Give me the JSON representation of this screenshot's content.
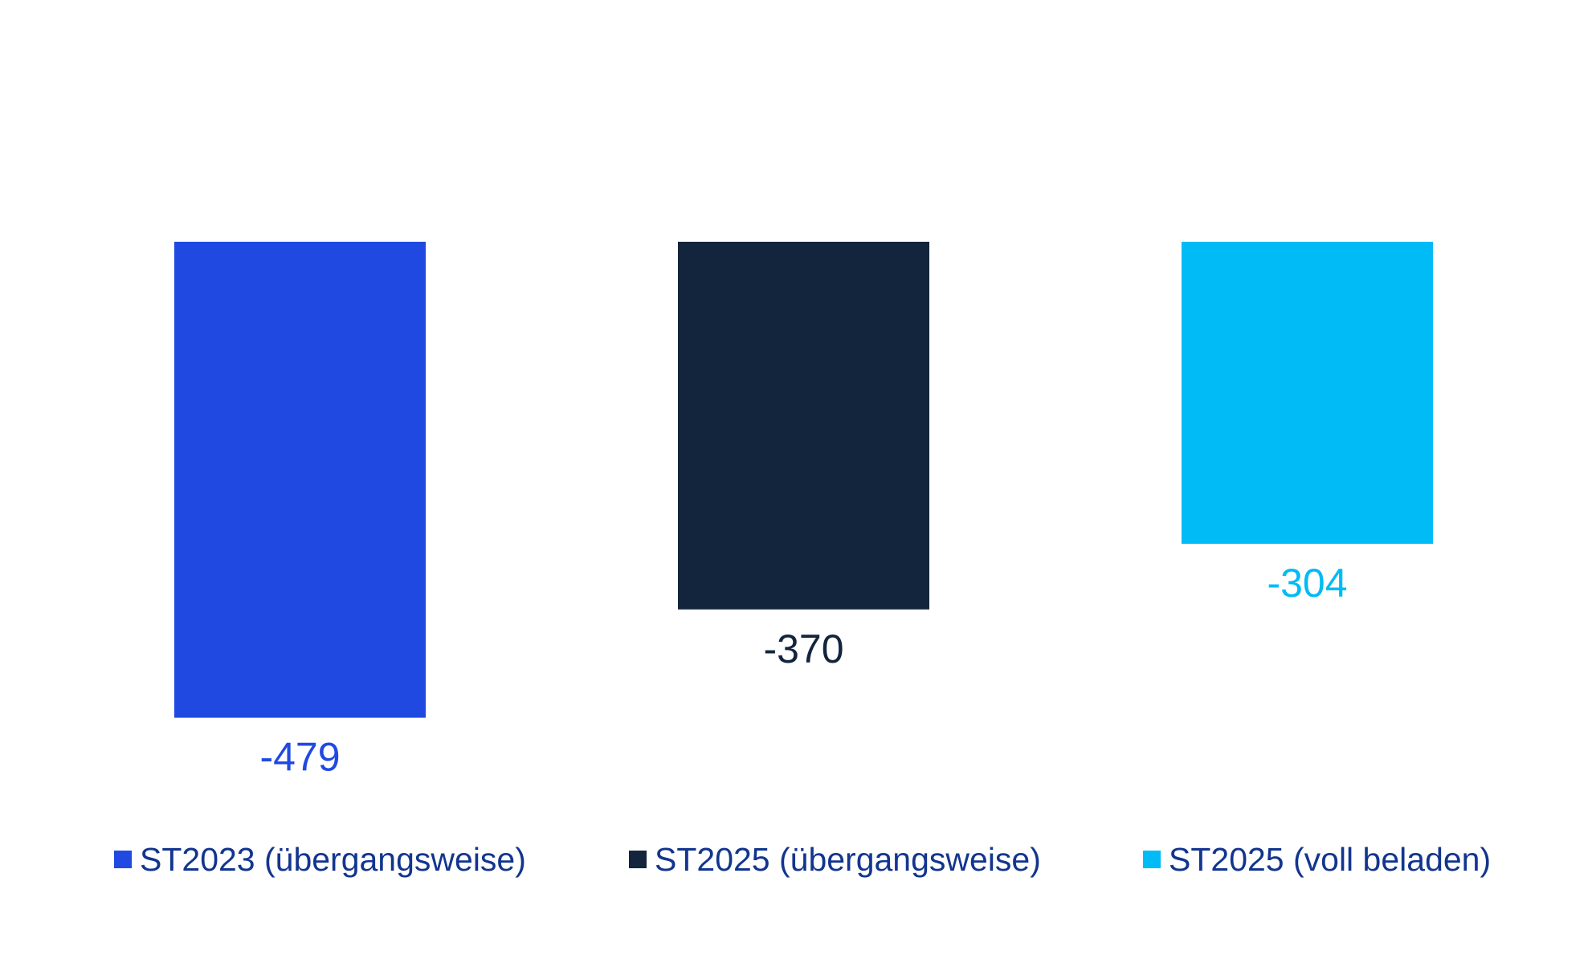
{
  "chart_data": {
    "type": "bar",
    "categories": [
      "ST2023 (übergangsweise)",
      "ST2025 (übergangsweise)",
      "ST2025 (voll beladen)"
    ],
    "values": [
      -479,
      -370,
      -304
    ],
    "value_labels": [
      "-479",
      "-370",
      "-304"
    ],
    "colors": [
      "#2049e2",
      "#12253c",
      "#00bbf5"
    ],
    "legend_text_color": "#12358e",
    "title": "",
    "xlabel": "",
    "ylabel": "",
    "ylim": [
      -600,
      0
    ],
    "grid": false,
    "legend_position": "bottom"
  }
}
